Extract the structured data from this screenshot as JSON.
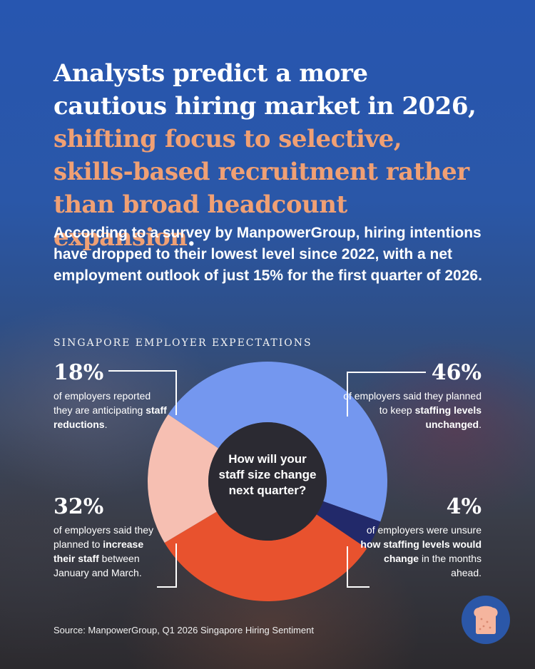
{
  "headline": {
    "lead": "Analysts predict a more cautious hiring market in 2026, ",
    "accent": "shifting focus to selective, skills-based recruitment rather than broad headcount expansion",
    "end": "."
  },
  "subhead": "According to a survey by ManpowerGroup, hiring intentions have dropped to their lowest level since 2022, with a net employment outlook of just 15% for the first quarter of 2026.",
  "section_label": "SINGAPORE EMPLOYER EXPECTATIONS",
  "callouts": {
    "reduce": {
      "pct": "18%",
      "pre": "of employers reported they are anticipating ",
      "bold": "staff reductions",
      "post": "."
    },
    "increase": {
      "pct": "32%",
      "pre": "of employers said they planned to ",
      "bold": "increase their staff",
      "post": " between January and March."
    },
    "unchanged": {
      "pct": "46%",
      "pre": "of employers said they planned to keep ",
      "bold": "staffing levels unchanged",
      "post": "."
    },
    "unsure": {
      "pct": "4%",
      "pre": "of employers were unsure ",
      "bold": "how staffing levels would change",
      "post": " in the months ahead."
    }
  },
  "chart_data": {
    "type": "pie",
    "donut": true,
    "title": "",
    "center_label": "How will your staff size change next quarter?",
    "start_angle_deg": -56,
    "slices": [
      {
        "label": "unchanged",
        "value": 46,
        "color": "#7497ef"
      },
      {
        "label": "unsure",
        "value": 4,
        "color": "#22296a"
      },
      {
        "label": "increase",
        "value": 32,
        "color": "#e8522e"
      },
      {
        "label": "reduce",
        "value": 18,
        "color": "#f6bfb2"
      }
    ],
    "hole_color": "#2b2a32"
  },
  "source": "Source: ManpowerGroup, Q1 2026 Singapore Hiring Sentiment",
  "logo": {
    "icon": "bread-toast-icon",
    "bg": "#2b57a8",
    "color": "#f5b59e"
  }
}
